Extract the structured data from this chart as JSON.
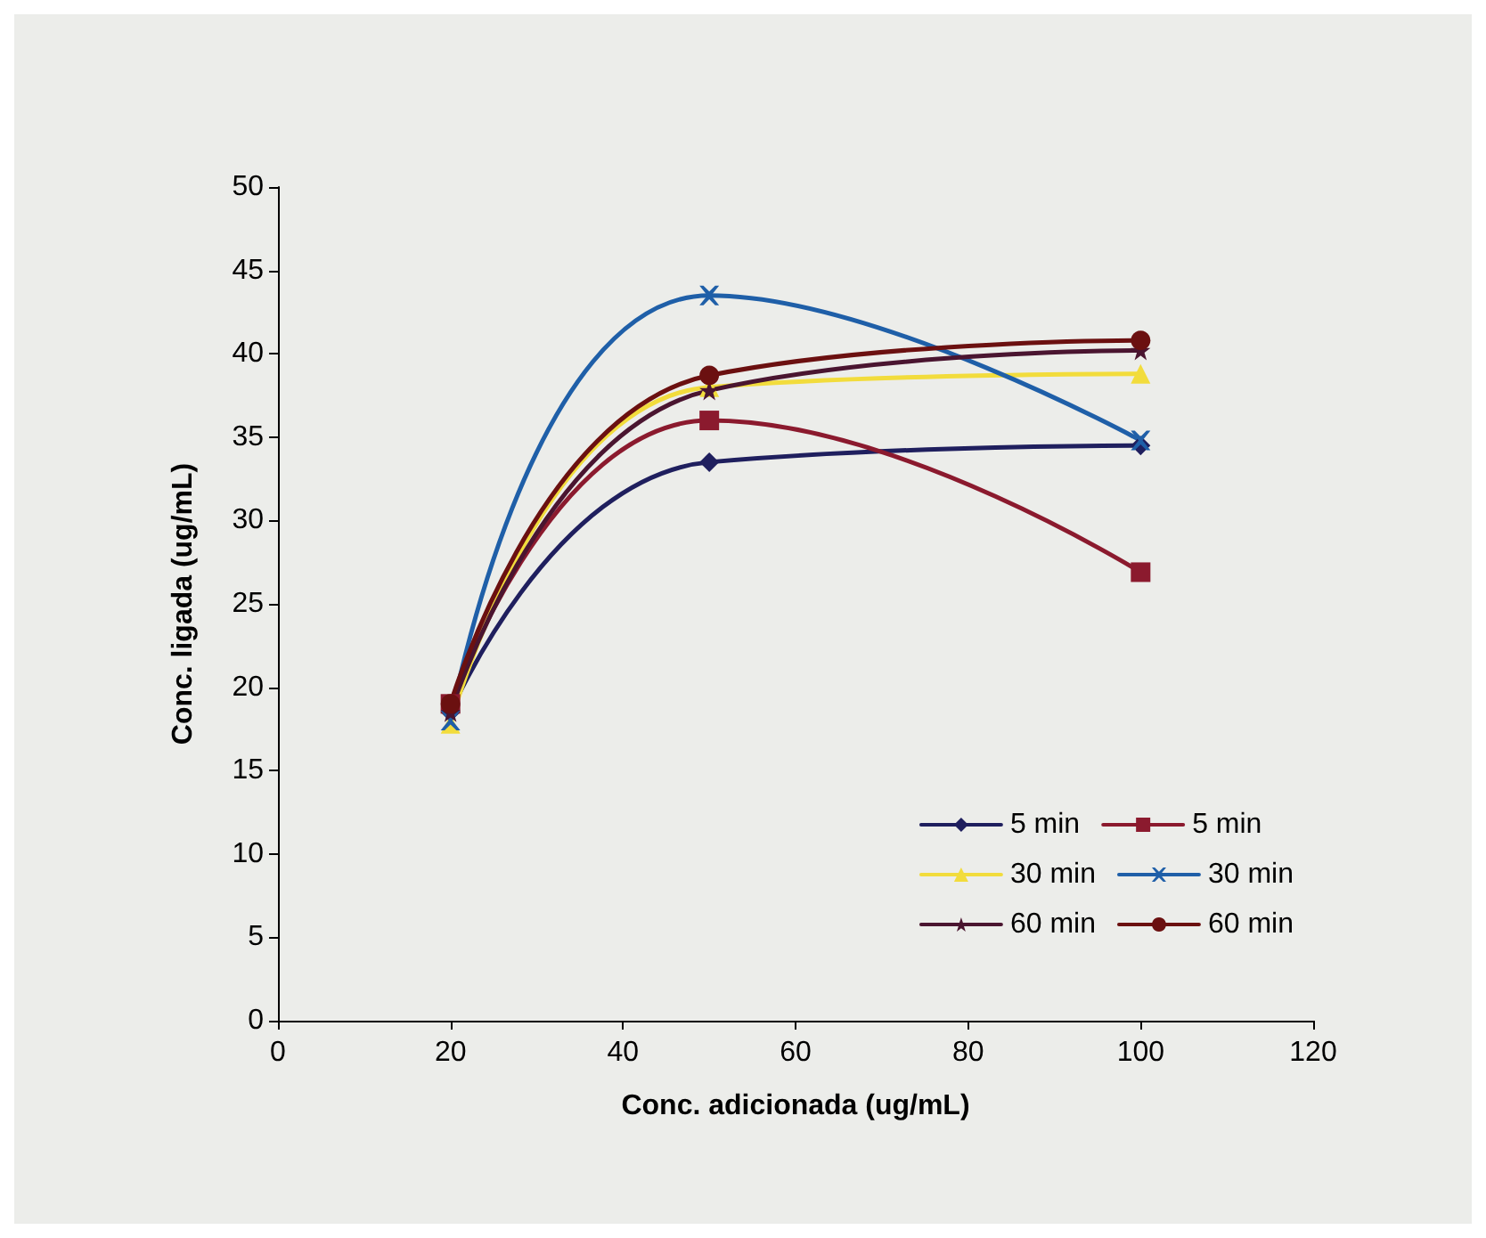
{
  "chart_data": {
    "type": "line",
    "xlabel": "Conc. adicionada (ug/mL)",
    "ylabel": "Conc. ligada (ug/mL)",
    "x": [
      20,
      50,
      100
    ],
    "xlim": [
      0,
      120
    ],
    "xticks": [
      0,
      20,
      40,
      60,
      80,
      100,
      120
    ],
    "ylim": [
      0,
      50
    ],
    "yticks": [
      0,
      5,
      10,
      15,
      20,
      25,
      30,
      35,
      40,
      45,
      50
    ],
    "grid": false,
    "legend": "bottom right",
    "line_style": "solid",
    "series": [
      {
        "name": "5 min",
        "color": "#1f1f5e",
        "marker": "diamond",
        "values": [
          18.5,
          33.5,
          34.5
        ]
      },
      {
        "name": "5 min",
        "color": "#8b1a2e",
        "marker": "square",
        "values": [
          19,
          36,
          26.9
        ]
      },
      {
        "name": "30 min",
        "color": "#f2dc3c",
        "marker": "triangle",
        "values": [
          17.8,
          38,
          38.8
        ]
      },
      {
        "name": "30 min",
        "color": "#1f5fa8",
        "marker": "cross",
        "values": [
          18,
          43.5,
          34.8
        ]
      },
      {
        "name": "60 min",
        "color": "#4a1530",
        "marker": "star",
        "values": [
          18.5,
          37.8,
          40.2
        ]
      },
      {
        "name": "60 min",
        "color": "#6b1010",
        "marker": "circle",
        "values": [
          19,
          38.7,
          40.8
        ]
      }
    ]
  }
}
